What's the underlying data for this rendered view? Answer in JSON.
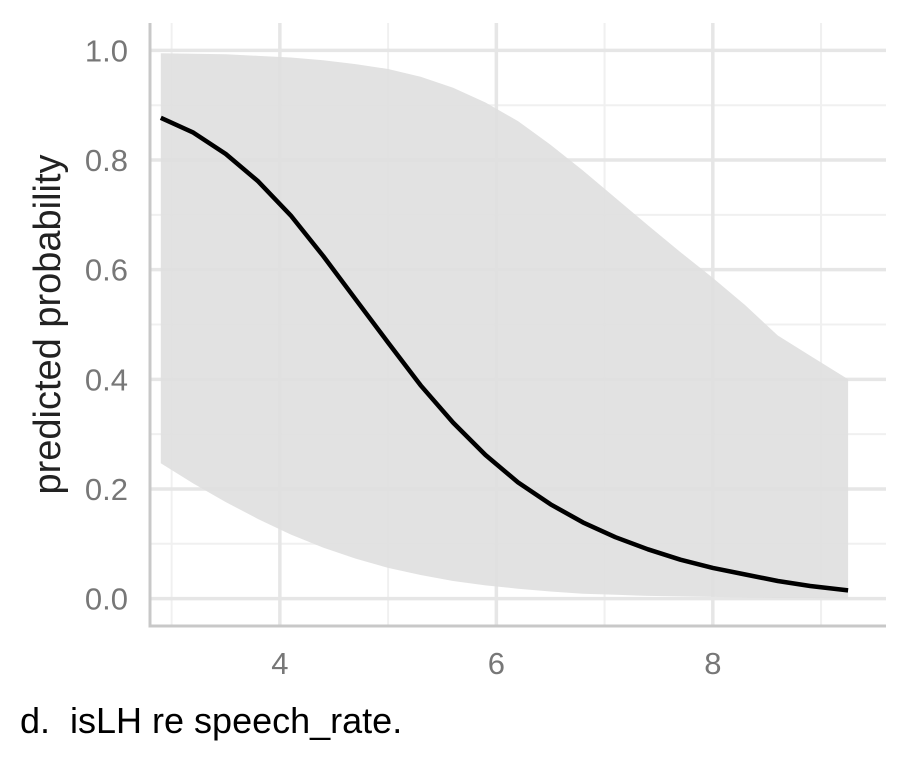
{
  "chart_data": {
    "type": "line",
    "title": "",
    "xlabel": "",
    "ylabel": "predicted probability",
    "xlim": [
      2.8,
      9.6
    ],
    "ylim": [
      -0.05,
      1.05
    ],
    "x_ticks": [
      4,
      6,
      8
    ],
    "y_ticks": [
      0.0,
      0.2,
      0.4,
      0.6,
      0.8,
      1.0
    ],
    "x_tick_labels": [
      "4",
      "6",
      "8"
    ],
    "y_tick_labels": [
      "0.0",
      "0.2",
      "0.4",
      "0.6",
      "0.8",
      "1.0"
    ],
    "x_minor_gridlines": [
      3,
      5,
      7,
      9
    ],
    "y_minor_gridlines": [
      0.1,
      0.3,
      0.5,
      0.7,
      0.9
    ],
    "grid": true,
    "series": [
      {
        "x": [
          2.9,
          3.2,
          3.5,
          3.8,
          4.1,
          4.4,
          4.7,
          5.0,
          5.3,
          5.6,
          5.9,
          6.2,
          6.5,
          6.8,
          7.1,
          7.4,
          7.7,
          8.0,
          8.3,
          8.6,
          8.9,
          9.25
        ],
        "values": [
          0.877,
          0.85,
          0.811,
          0.761,
          0.699,
          0.625,
          0.546,
          0.467,
          0.389,
          0.321,
          0.262,
          0.212,
          0.172,
          0.139,
          0.112,
          0.09,
          0.071,
          0.056,
          0.044,
          0.032,
          0.023,
          0.015
        ],
        "color": "#000000"
      }
    ],
    "ribbon": {
      "x": [
        2.9,
        3.2,
        3.5,
        3.8,
        4.1,
        4.4,
        4.7,
        5.0,
        5.3,
        5.6,
        5.9,
        6.2,
        6.5,
        6.8,
        7.1,
        7.4,
        7.7,
        8.0,
        8.3,
        8.6,
        8.9,
        9.25
      ],
      "upper": [
        0.995,
        0.994,
        0.993,
        0.99,
        0.987,
        0.982,
        0.975,
        0.966,
        0.952,
        0.932,
        0.905,
        0.871,
        0.828,
        0.781,
        0.731,
        0.681,
        0.632,
        0.585,
        0.535,
        0.48,
        0.443,
        0.4
      ],
      "lower": [
        0.247,
        0.21,
        0.176,
        0.145,
        0.117,
        0.093,
        0.073,
        0.056,
        0.043,
        0.032,
        0.024,
        0.018,
        0.013,
        0.009,
        0.007,
        0.005,
        0.004,
        0.003,
        0.002,
        0.001,
        0.001,
        0.0
      ],
      "color": "#e0e0e0"
    },
    "colors": {
      "background": "#ffffff",
      "major_grid": "#e6e6e6",
      "minor_grid": "#f0f0f0",
      "axis_line": "#c8c8c8",
      "tick_label": "#777777",
      "axis_title": "#222222"
    }
  },
  "caption": "d.  isLH re speech_rate."
}
